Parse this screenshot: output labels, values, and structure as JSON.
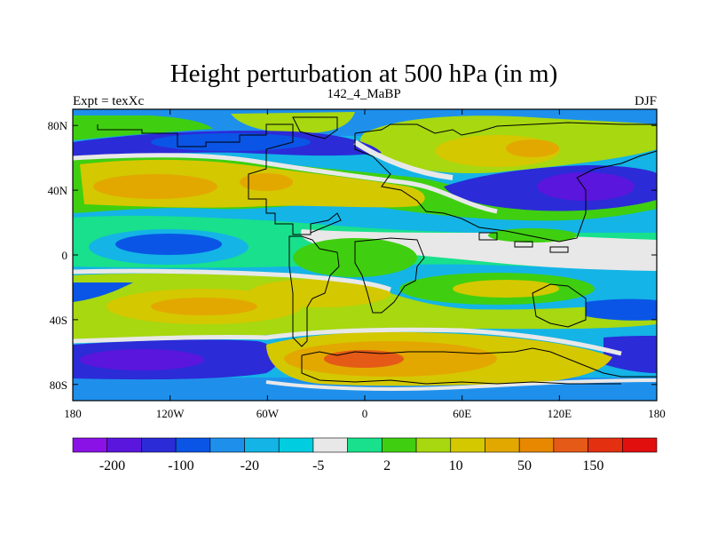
{
  "chart_data": {
    "type": "heatmap",
    "title": "Height perturbation at 500 hPa (in m)",
    "left_label": "Expt = texXc",
    "center_label": "142_4_MaBP",
    "right_label": "DJF",
    "x_ticks": [
      "180",
      "120W",
      "60W",
      "0",
      "60E",
      "120E",
      "180"
    ],
    "x_tick_values": [
      -180,
      -120,
      -60,
      0,
      60,
      120,
      180
    ],
    "y_ticks": [
      "80N",
      "40N",
      "0",
      "40S",
      "80S"
    ],
    "y_tick_values": [
      80,
      40,
      0,
      -40,
      -80
    ],
    "xlim": [
      -180,
      180
    ],
    "ylim": [
      -90,
      90
    ],
    "colorbar": {
      "labels": [
        "-200",
        "-100",
        "-20",
        "-5",
        "2",
        "10",
        "50",
        "150"
      ],
      "colors": [
        "#8a12e6",
        "#5a16dc",
        "#2b2bd8",
        "#0a55e6",
        "#1e90ec",
        "#14b4e6",
        "#00cde0",
        "#e8e8e8",
        "#18e08c",
        "#3fcf10",
        "#a7d810",
        "#d4c800",
        "#e2a800",
        "#e88800",
        "#e45a16",
        "#e23010",
        "#e20f0f"
      ]
    },
    "land_outline": "continental coastlines shown as black stepped contour lines"
  }
}
